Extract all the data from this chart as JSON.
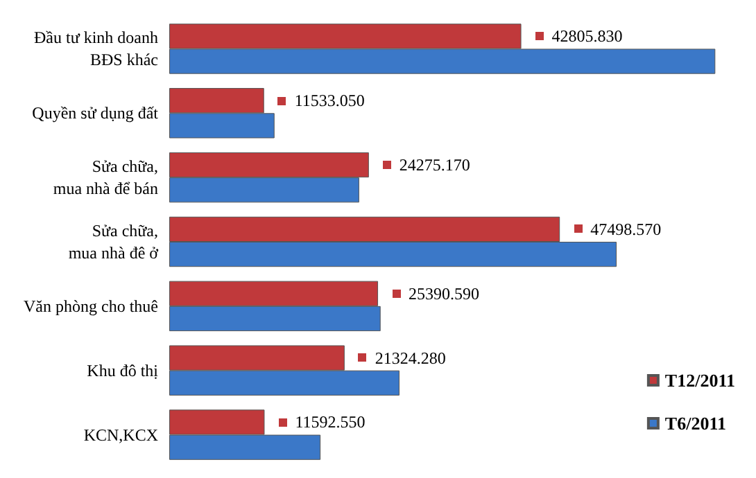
{
  "chart_data": {
    "type": "bar",
    "orientation": "horizontal",
    "categories": [
      "Đầu tư kinh doanh\nBĐS khác",
      "Quyền sử dụng đất",
      "Sửa chữa,\nmua nhà để bán",
      "Sửa chữa,\nmua nhà đê ở",
      "Văn phòng cho thuê",
      "Khu đô thị",
      "KCN,KCX"
    ],
    "series": [
      {
        "name": "T12/2011",
        "color": "#c0393b",
        "values": [
          42805.83,
          11533.05,
          24275.17,
          47498.57,
          25390.59,
          21324.28,
          11592.55
        ],
        "value_labels": [
          "42805.830",
          "11533.050",
          "24275.170",
          "47498.570",
          "25390.590",
          "21324.280",
          "11592.550"
        ]
      },
      {
        "name": "T6/2011",
        "color": "#3b78c8",
        "values": [
          66400,
          12800,
          23100,
          54400,
          25700,
          28000,
          18400
        ]
      }
    ],
    "legend": "bottom right",
    "grid": false
  }
}
